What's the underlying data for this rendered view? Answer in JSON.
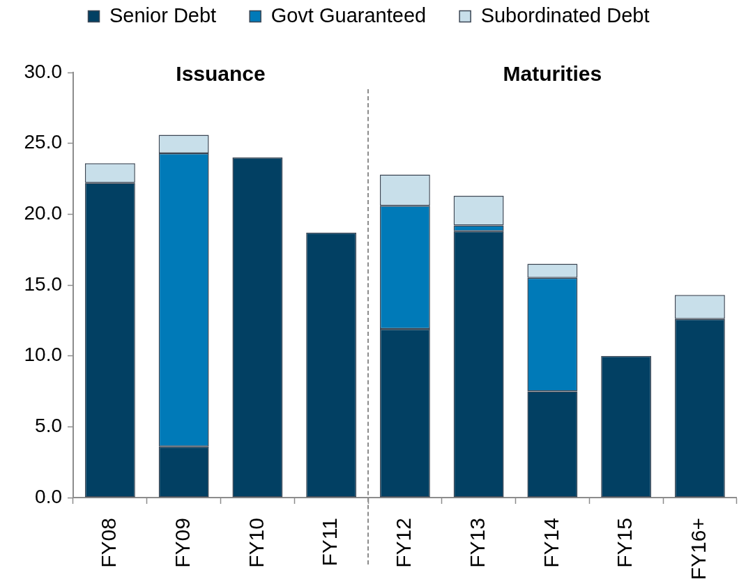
{
  "chart_data": {
    "type": "bar",
    "stacked": true,
    "categories": [
      "FY08",
      "FY09",
      "FY10",
      "FY11",
      "FY12",
      "FY13",
      "FY14",
      "FY15",
      "FY16+"
    ],
    "series": [
      {
        "name": "Senior Debt",
        "color": "#024063",
        "values": [
          22.2,
          3.6,
          24.0,
          18.7,
          11.9,
          18.8,
          7.5,
          10.0,
          12.6
        ]
      },
      {
        "name": "Govt Guaranteed",
        "color": "#007ab8",
        "values": [
          0,
          20.7,
          0,
          0,
          8.7,
          0.4,
          8.0,
          0,
          0
        ]
      },
      {
        "name": "Subordinated Debt",
        "color": "#c8dfea",
        "values": [
          1.4,
          1.3,
          0,
          0,
          2.2,
          2.1,
          1.0,
          0,
          1.7
        ]
      }
    ],
    "ylim": [
      0,
      30
    ],
    "yticks": [
      {
        "value": 0,
        "label": "0.0"
      },
      {
        "value": 5,
        "label": "5.0"
      },
      {
        "value": 10,
        "label": "10.0"
      },
      {
        "value": 15,
        "label": "15.0"
      },
      {
        "value": 20,
        "label": "20.0"
      },
      {
        "value": 25,
        "label": "25.0"
      },
      {
        "value": 30,
        "label": "30.0"
      }
    ],
    "annotations": [
      "Issuance",
      "Maturities"
    ],
    "legend": "top",
    "grid": false
  }
}
